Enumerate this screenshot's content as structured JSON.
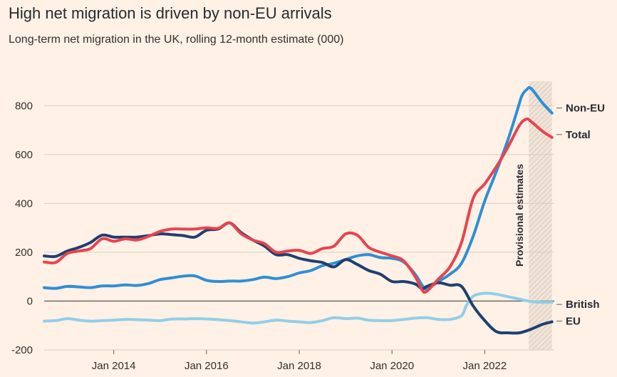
{
  "title": "High net migration is driven by non-EU arrivals",
  "subtitle": "Long-term net migration in the UK, rolling 12-month estimate (000)",
  "chart_data": {
    "type": "line",
    "title": "High net migration is driven by non-EU arrivals",
    "subtitle": "Long-term net migration in the UK, rolling 12-month estimate (000)",
    "xlabel": "",
    "ylabel": "",
    "xlim": [
      2012.5,
      2023.5
    ],
    "ylim": [
      -200,
      900
    ],
    "grid": true,
    "x_ticks": [
      {
        "value": 2014,
        "label": "Jan 2014"
      },
      {
        "value": 2016,
        "label": "Jan 2016"
      },
      {
        "value": 2018,
        "label": "Jan 2018"
      },
      {
        "value": 2020,
        "label": "Jan 2020"
      },
      {
        "value": 2022,
        "label": "Jan 2022"
      }
    ],
    "y_ticks": [
      {
        "value": 800,
        "label": "800"
      },
      {
        "value": 600,
        "label": "600"
      },
      {
        "value": 400,
        "label": "400"
      },
      {
        "value": 200,
        "label": "200"
      },
      {
        "value": 0,
        "label": "0"
      },
      {
        "value": -200,
        "label": "-200"
      }
    ],
    "shaded_region": {
      "x_start": 2022.95,
      "x_end": 2023.45,
      "label": "Provisional estimates"
    },
    "series": [
      {
        "name": "Non-EU",
        "label": "Non-EU",
        "color": "#2E8FD4",
        "x": [
          2012.5,
          2012.75,
          2013,
          2013.25,
          2013.5,
          2013.75,
          2014,
          2014.25,
          2014.5,
          2014.75,
          2015,
          2015.25,
          2015.5,
          2015.75,
          2016,
          2016.25,
          2016.5,
          2016.75,
          2017,
          2017.25,
          2017.5,
          2017.75,
          2018,
          2018.25,
          2018.5,
          2018.75,
          2019,
          2019.25,
          2019.5,
          2019.75,
          2020,
          2020.25,
          2020.5,
          2020.65,
          2020.75,
          2021,
          2021.25,
          2021.5,
          2021.75,
          2022,
          2022.25,
          2022.5,
          2022.7,
          2022.8,
          2022.9,
          2023,
          2023.25,
          2023.45
        ],
        "values": [
          55,
          52,
          60,
          58,
          55,
          62,
          62,
          66,
          64,
          72,
          88,
          95,
          102,
          103,
          85,
          80,
          82,
          82,
          88,
          98,
          92,
          100,
          115,
          125,
          145,
          155,
          170,
          185,
          190,
          178,
          175,
          160,
          110,
          65,
          50,
          80,
          110,
          155,
          265,
          410,
          530,
          660,
          780,
          840,
          865,
          870,
          810,
          770
        ]
      },
      {
        "name": "Total",
        "label": "Total",
        "color": "#E8434F",
        "x": [
          2012.5,
          2012.75,
          2013,
          2013.25,
          2013.5,
          2013.75,
          2014,
          2014.25,
          2014.5,
          2014.75,
          2015,
          2015.25,
          2015.5,
          2015.75,
          2016,
          2016.25,
          2016.5,
          2016.75,
          2017,
          2017.25,
          2017.5,
          2017.75,
          2018,
          2018.25,
          2018.5,
          2018.75,
          2019,
          2019.25,
          2019.5,
          2019.75,
          2020,
          2020.25,
          2020.5,
          2020.65,
          2020.75,
          2021,
          2021.25,
          2021.5,
          2021.75,
          2022,
          2022.25,
          2022.5,
          2022.75,
          2022.9,
          2023,
          2023.25,
          2023.45
        ],
        "values": [
          160,
          158,
          195,
          205,
          215,
          255,
          245,
          255,
          250,
          265,
          285,
          295,
          295,
          295,
          300,
          298,
          320,
          275,
          250,
          235,
          200,
          205,
          208,
          195,
          215,
          225,
          275,
          270,
          220,
          200,
          185,
          165,
          100,
          45,
          40,
          90,
          140,
          240,
          420,
          480,
          550,
          630,
          720,
          745,
          735,
          695,
          670
        ]
      },
      {
        "name": "British",
        "label": "British",
        "color": "#8FCFEA",
        "x": [
          2012.5,
          2012.75,
          2013,
          2013.25,
          2013.5,
          2013.75,
          2014,
          2014.25,
          2014.5,
          2014.75,
          2015,
          2015.25,
          2015.5,
          2015.75,
          2016,
          2016.25,
          2016.5,
          2016.75,
          2017,
          2017.25,
          2017.5,
          2017.75,
          2018,
          2018.25,
          2018.5,
          2018.75,
          2019,
          2019.25,
          2019.5,
          2019.75,
          2020,
          2020.25,
          2020.5,
          2020.75,
          2021,
          2021.25,
          2021.5,
          2021.6,
          2021.75,
          2022,
          2022.25,
          2022.5,
          2022.75,
          2023,
          2023.25,
          2023.45
        ],
        "values": [
          -82,
          -80,
          -72,
          -78,
          -82,
          -80,
          -78,
          -75,
          -76,
          -78,
          -80,
          -74,
          -73,
          -72,
          -73,
          -76,
          -80,
          -85,
          -90,
          -85,
          -78,
          -82,
          -85,
          -88,
          -80,
          -68,
          -72,
          -70,
          -78,
          -80,
          -80,
          -75,
          -70,
          -68,
          -75,
          -75,
          -60,
          -20,
          20,
          32,
          28,
          18,
          8,
          -2,
          -5,
          -5
        ]
      },
      {
        "name": "EU",
        "label": "EU",
        "color": "#1F3F6F",
        "x": [
          2012.5,
          2012.75,
          2013,
          2013.25,
          2013.5,
          2013.75,
          2014,
          2014.25,
          2014.5,
          2014.75,
          2015,
          2015.25,
          2015.5,
          2015.75,
          2016,
          2016.25,
          2016.5,
          2016.75,
          2017,
          2017.25,
          2017.5,
          2017.75,
          2018,
          2018.25,
          2018.5,
          2018.75,
          2019,
          2019.25,
          2019.5,
          2019.75,
          2020,
          2020.25,
          2020.5,
          2020.65,
          2020.75,
          2021,
          2021.25,
          2021.5,
          2021.75,
          2022,
          2022.25,
          2022.5,
          2022.75,
          2023,
          2023.25,
          2023.45
        ],
        "values": [
          185,
          183,
          205,
          220,
          240,
          270,
          262,
          262,
          262,
          268,
          275,
          272,
          268,
          262,
          290,
          295,
          320,
          280,
          250,
          225,
          190,
          190,
          175,
          165,
          158,
          140,
          170,
          150,
          125,
          110,
          80,
          80,
          70,
          50,
          60,
          75,
          65,
          60,
          -20,
          -80,
          -125,
          -130,
          -130,
          -115,
          -95,
          -85
        ]
      }
    ]
  }
}
